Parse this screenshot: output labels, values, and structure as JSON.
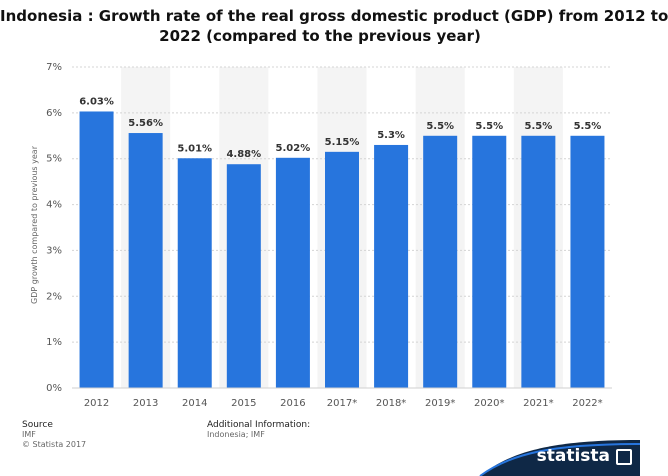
{
  "title_line1": "Indonesia : Growth rate of the real gross domestic product (GDP) from 2012 to",
  "title_line2": "2022 (compared to the previous year)",
  "footer": {
    "source_heading": "Source",
    "source": "IMF",
    "copyright": "© Statista 2017",
    "additional_heading": "Additional Information:",
    "additional": "Indonesia; IMF",
    "brand": "statista"
  },
  "colors": {
    "bar": "#2775dd",
    "band": "#f4f4f4"
  },
  "chart_data": {
    "type": "bar",
    "categories": [
      "2012",
      "2013",
      "2014",
      "2015",
      "2016",
      "2017*",
      "2018*",
      "2019*",
      "2020*",
      "2021*",
      "2022*"
    ],
    "values": [
      6.03,
      5.56,
      5.01,
      4.88,
      5.02,
      5.15,
      5.3,
      5.5,
      5.5,
      5.5,
      5.5
    ],
    "value_labels": [
      "6.03%",
      "5.56%",
      "5.01%",
      "4.88%",
      "5.02%",
      "5.15%",
      "5.3%",
      "5.5%",
      "5.5%",
      "5.5%",
      "5.5%"
    ],
    "ylabel": "GDP growth compared to previous year",
    "ylim": [
      0,
      7
    ],
    "yticks": [
      0,
      1,
      2,
      3,
      4,
      5,
      6,
      7
    ],
    "ytick_labels": [
      "0%",
      "1%",
      "2%",
      "3%",
      "4%",
      "5%",
      "6%",
      "7%"
    ],
    "grid": true
  }
}
